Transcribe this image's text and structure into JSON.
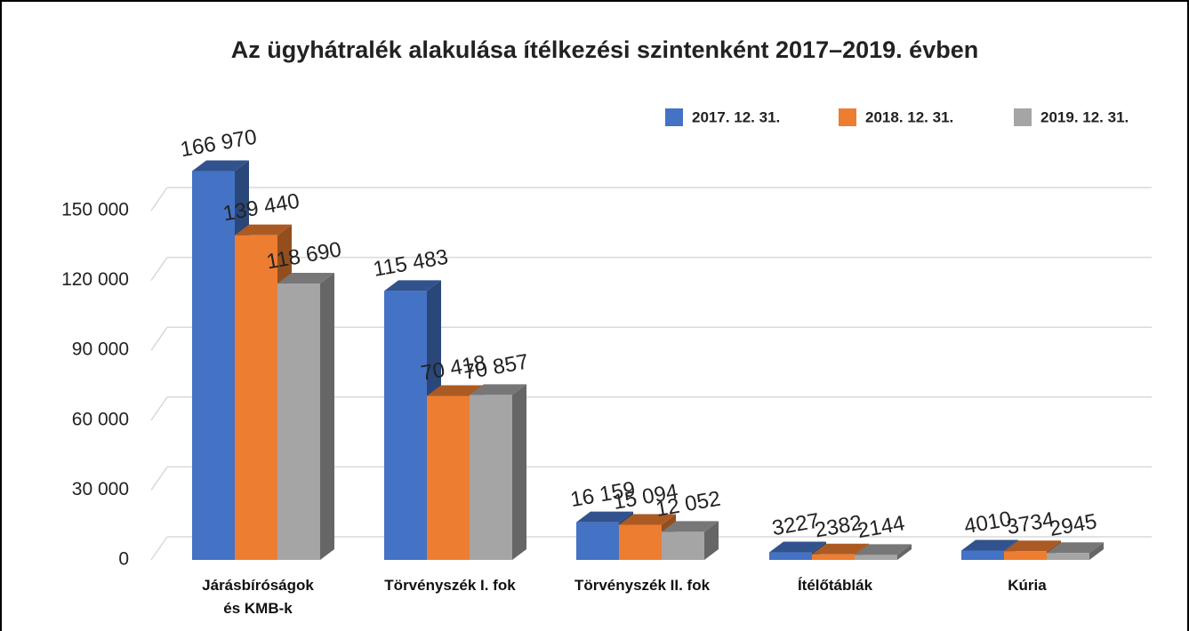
{
  "chart_data": {
    "type": "bar3d",
    "title": "Az ügyhátralék alakulása ítélkezési szintenként 2017–2019. évben",
    "categories": [
      "Járásbíróságok\nés KMB-k",
      "Törvényszék I. fok",
      "Törvényszék II. fok",
      "Ítélőtáblák",
      "Kúria"
    ],
    "series": [
      {
        "name": "2017. 12. 31.",
        "color": "#4472c4",
        "values": [
          166970,
          115483,
          16159,
          3227,
          4010
        ],
        "value_labels": [
          "166 970",
          "115 483",
          "16 159",
          "3227",
          "4010"
        ]
      },
      {
        "name": "2018. 12. 31.",
        "color": "#ed7d31",
        "values": [
          139440,
          70418,
          15094,
          2382,
          3734
        ],
        "value_labels": [
          "139 440",
          "70 418",
          "15 094",
          "2382",
          "3734"
        ]
      },
      {
        "name": "2019. 12. 31.",
        "color": "#a5a5a5",
        "values": [
          118690,
          70857,
          12052,
          2144,
          2945
        ],
        "value_labels": [
          "118 690",
          "70 857",
          "12 052",
          "2144",
          "2945"
        ]
      }
    ],
    "ylim": [
      0,
      150000
    ],
    "yticks": [
      0,
      {
        "value": 30000,
        "label": "30 000"
      },
      {
        "value": 60000,
        "label": "60 000"
      },
      {
        "value": 90000,
        "label": "90 000"
      },
      {
        "value": 120000,
        "label": "120 000"
      },
      {
        "value": 150000,
        "label": "150 000"
      }
    ],
    "grid": true,
    "legend": "top-right"
  }
}
